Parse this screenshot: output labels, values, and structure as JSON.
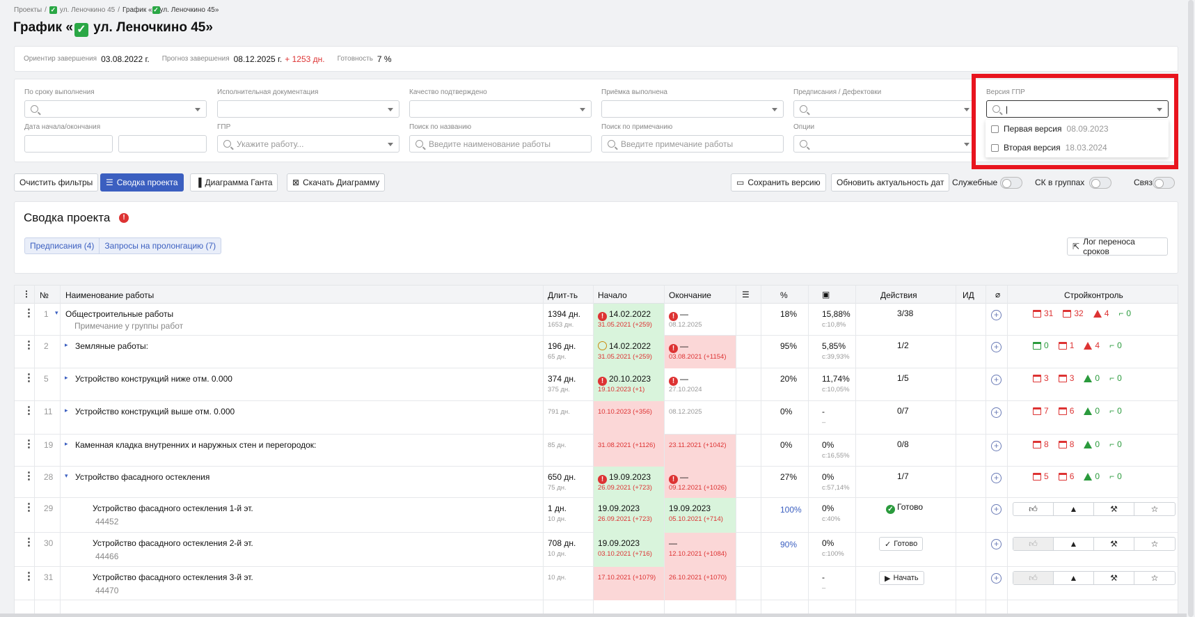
{
  "breadcrumb": {
    "root": "Проекты",
    "project": "ул. Леночкино 45",
    "current": "График «",
    "current_tail": "ул. Леночкино 45»"
  },
  "page_title": {
    "prefix": "График «",
    "name": "ул. Леночкино 45»"
  },
  "summary": {
    "target_label": "Ориентир завершения",
    "target_value": "03.08.2022 г.",
    "forecast_label": "Прогноз завершения",
    "forecast_value": "08.12.2025 г.",
    "forecast_delta": "+ 1253 дн.",
    "ready_label": "Готовность",
    "ready_value": "7 %"
  },
  "filters": {
    "by_deadline": "По сроку выполнения",
    "exec_docs": "Исполнительная документация",
    "quality": "Качество подтверждено",
    "acceptance": "Приёмка выполнена",
    "prescriptions": "Предписания / Дефектовки",
    "version": "Версия ГПР",
    "dates": "Дата начала/окончания",
    "gpr": "ГПР",
    "gpr_placeholder": "Укажите работу...",
    "name_search": "Поиск по названию",
    "name_placeholder": "Введите наименование работы",
    "note_search": "Поиск по примечанию",
    "note_placeholder": "Введите примечание работы",
    "options": "Опции"
  },
  "version_dropdown": [
    {
      "name": "Первая версия",
      "date": "08.09.2023"
    },
    {
      "name": "Вторая версия",
      "date": "18.03.2024"
    }
  ],
  "toolbar": {
    "clear": "Очистить фильтры",
    "summary": "Сводка проекта",
    "gantt": "Диаграмма Ганта",
    "download": "Скачать Диаграмму",
    "save_version": "Сохранить версию",
    "refresh": "Обновить актуальность дат",
    "service": "Служебные",
    "sk_groups": "СК в группах",
    "links": "Связи"
  },
  "project_summary": {
    "title": "Сводка проекта",
    "tab1": "Предписания (4)",
    "tab2": "Запросы на пролонгацию (7)",
    "log": "Лог переноса сроков"
  },
  "columns": {
    "num": "№",
    "name": "Наименование работы",
    "dur": "Длит-ть",
    "start": "Начало",
    "end": "Окончание",
    "pct": "%",
    "actions": "Действия",
    "id": "ИД",
    "sk": "Стройконтроль"
  },
  "rows": [
    {
      "n": "1",
      "name": "Общестроительные работы",
      "note": "Примечание у группы работ",
      "dur": "1394 дн.",
      "dur2": "1653 дн.",
      "start": "14.02.2022",
      "start2": "31.05.2021 (+259)",
      "end": "—",
      "end2": "08.12.2025",
      "pct": "18%",
      "fin": "15,88%",
      "fin2": "с:10,8%",
      "act": "3/38",
      "sk": [
        "31",
        "32",
        "4",
        "0"
      ]
    },
    {
      "n": "2",
      "name": "Земляные работы:",
      "dur": "196 дн.",
      "dur2": "65 дн.",
      "start": "14.02.2022",
      "start2": "31.05.2021 (+259)",
      "end": "—",
      "end2": "03.08.2021 (+1154)",
      "pct": "95%",
      "fin": "5,85%",
      "fin2": "с:39,93%",
      "act": "1/2",
      "sk": [
        "0",
        "1",
        "4",
        "0"
      ]
    },
    {
      "n": "5",
      "name": "Устройство конструкций ниже отм. 0.000",
      "dur": "374 дн.",
      "dur2": "375 дн.",
      "start": "20.10.2023",
      "start2": "19.10.2023 (+1)",
      "end": "—",
      "end2": "27.10.2024",
      "pct": "20%",
      "fin": "11,74%",
      "fin2": "с:10,05%",
      "act": "1/5",
      "sk": [
        "3",
        "3",
        "0",
        "0"
      ]
    },
    {
      "n": "11",
      "name": "Устройство конструкций выше отм. 0.000",
      "dur2": "791 дн.",
      "start2": "10.10.2023 (+356)",
      "end2": "08.12.2025",
      "pct": "0%",
      "fin": "-",
      "fin2": "–",
      "act": "0/7",
      "sk": [
        "7",
        "6",
        "0",
        "0"
      ]
    },
    {
      "n": "19",
      "name": "Каменная кладка внутренних и наружных стен и перегородок:",
      "dur2": "85 дн.",
      "start2": "31.08.2021 (+1126)",
      "end2": "23.11.2021 (+1042)",
      "pct": "0%",
      "fin": "0%",
      "fin2": "с:16,55%",
      "act": "0/8",
      "sk": [
        "8",
        "8",
        "0",
        "0"
      ]
    },
    {
      "n": "28",
      "name": "Устройство фасадного остекления",
      "dur": "650 дн.",
      "dur2": "75 дн.",
      "start": "19.09.2023",
      "start2": "26.09.2021 (+723)",
      "end": "—",
      "end2": "09.12.2021 (+1026)",
      "pct": "27%",
      "fin": "0%",
      "fin2": "с:57,14%",
      "act": "1/7",
      "sk": [
        "5",
        "6",
        "0",
        "0"
      ]
    },
    {
      "n": "29",
      "name": "Устройство фасадного остекления 1-й эт.",
      "code": "44452",
      "dur": "1 дн.",
      "dur2": "10 дн.",
      "start": "19.09.2023",
      "start2": "26.09.2021 (+723)",
      "end": "19.09.2023",
      "end2": "05.10.2021 (+714)",
      "pct": "100%",
      "fin": "0%",
      "fin2": "с:40%",
      "act": "Готово"
    },
    {
      "n": "30",
      "name": "Устройство фасадного остекления 2-й эт.",
      "code": "44466",
      "dur": "708 дн.",
      "dur2": "10 дн.",
      "start": "19.09.2023",
      "start2": "03.10.2021 (+716)",
      "end": "—",
      "end2": "12.10.2021 (+1084)",
      "pct": "90%",
      "fin": "0%",
      "fin2": "с:100%",
      "act": "Готово"
    },
    {
      "n": "31",
      "name": "Устройство фасадного остекления 3-й эт.",
      "code": "44470",
      "dur2": "10 дн.",
      "start2": "17.10.2021 (+1079)",
      "end2": "26.10.2021 (+1070)",
      "fin": "-",
      "fin2": "–",
      "act": "Начать"
    }
  ]
}
